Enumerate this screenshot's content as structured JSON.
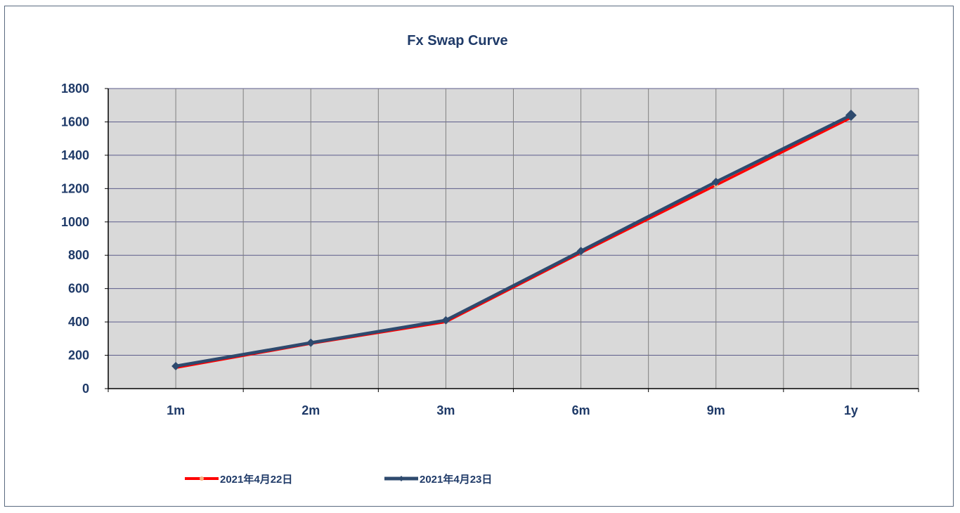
{
  "chart_data": {
    "type": "line",
    "title": "Fx Swap Curve",
    "xlabel": "",
    "ylabel": "",
    "categories": [
      "1m",
      "2m",
      "3m",
      "6m",
      "9m",
      "1y"
    ],
    "ylim": [
      0,
      1800
    ],
    "yticks": [
      0,
      200,
      400,
      600,
      800,
      1000,
      1200,
      1400,
      1600,
      1800
    ],
    "grid": true,
    "legend_position": "bottom-left",
    "plot_background": "#d9d9d9",
    "series": [
      {
        "name": "2021年4月22日",
        "values": [
          125,
          270,
          400,
          815,
          1220,
          1625
        ],
        "color": "#ff0000",
        "marker": "star"
      },
      {
        "name": "2021年4月23日",
        "values": [
          135,
          275,
          410,
          825,
          1240,
          1640
        ],
        "color": "#2e4a6e",
        "marker": "diamond"
      }
    ]
  }
}
